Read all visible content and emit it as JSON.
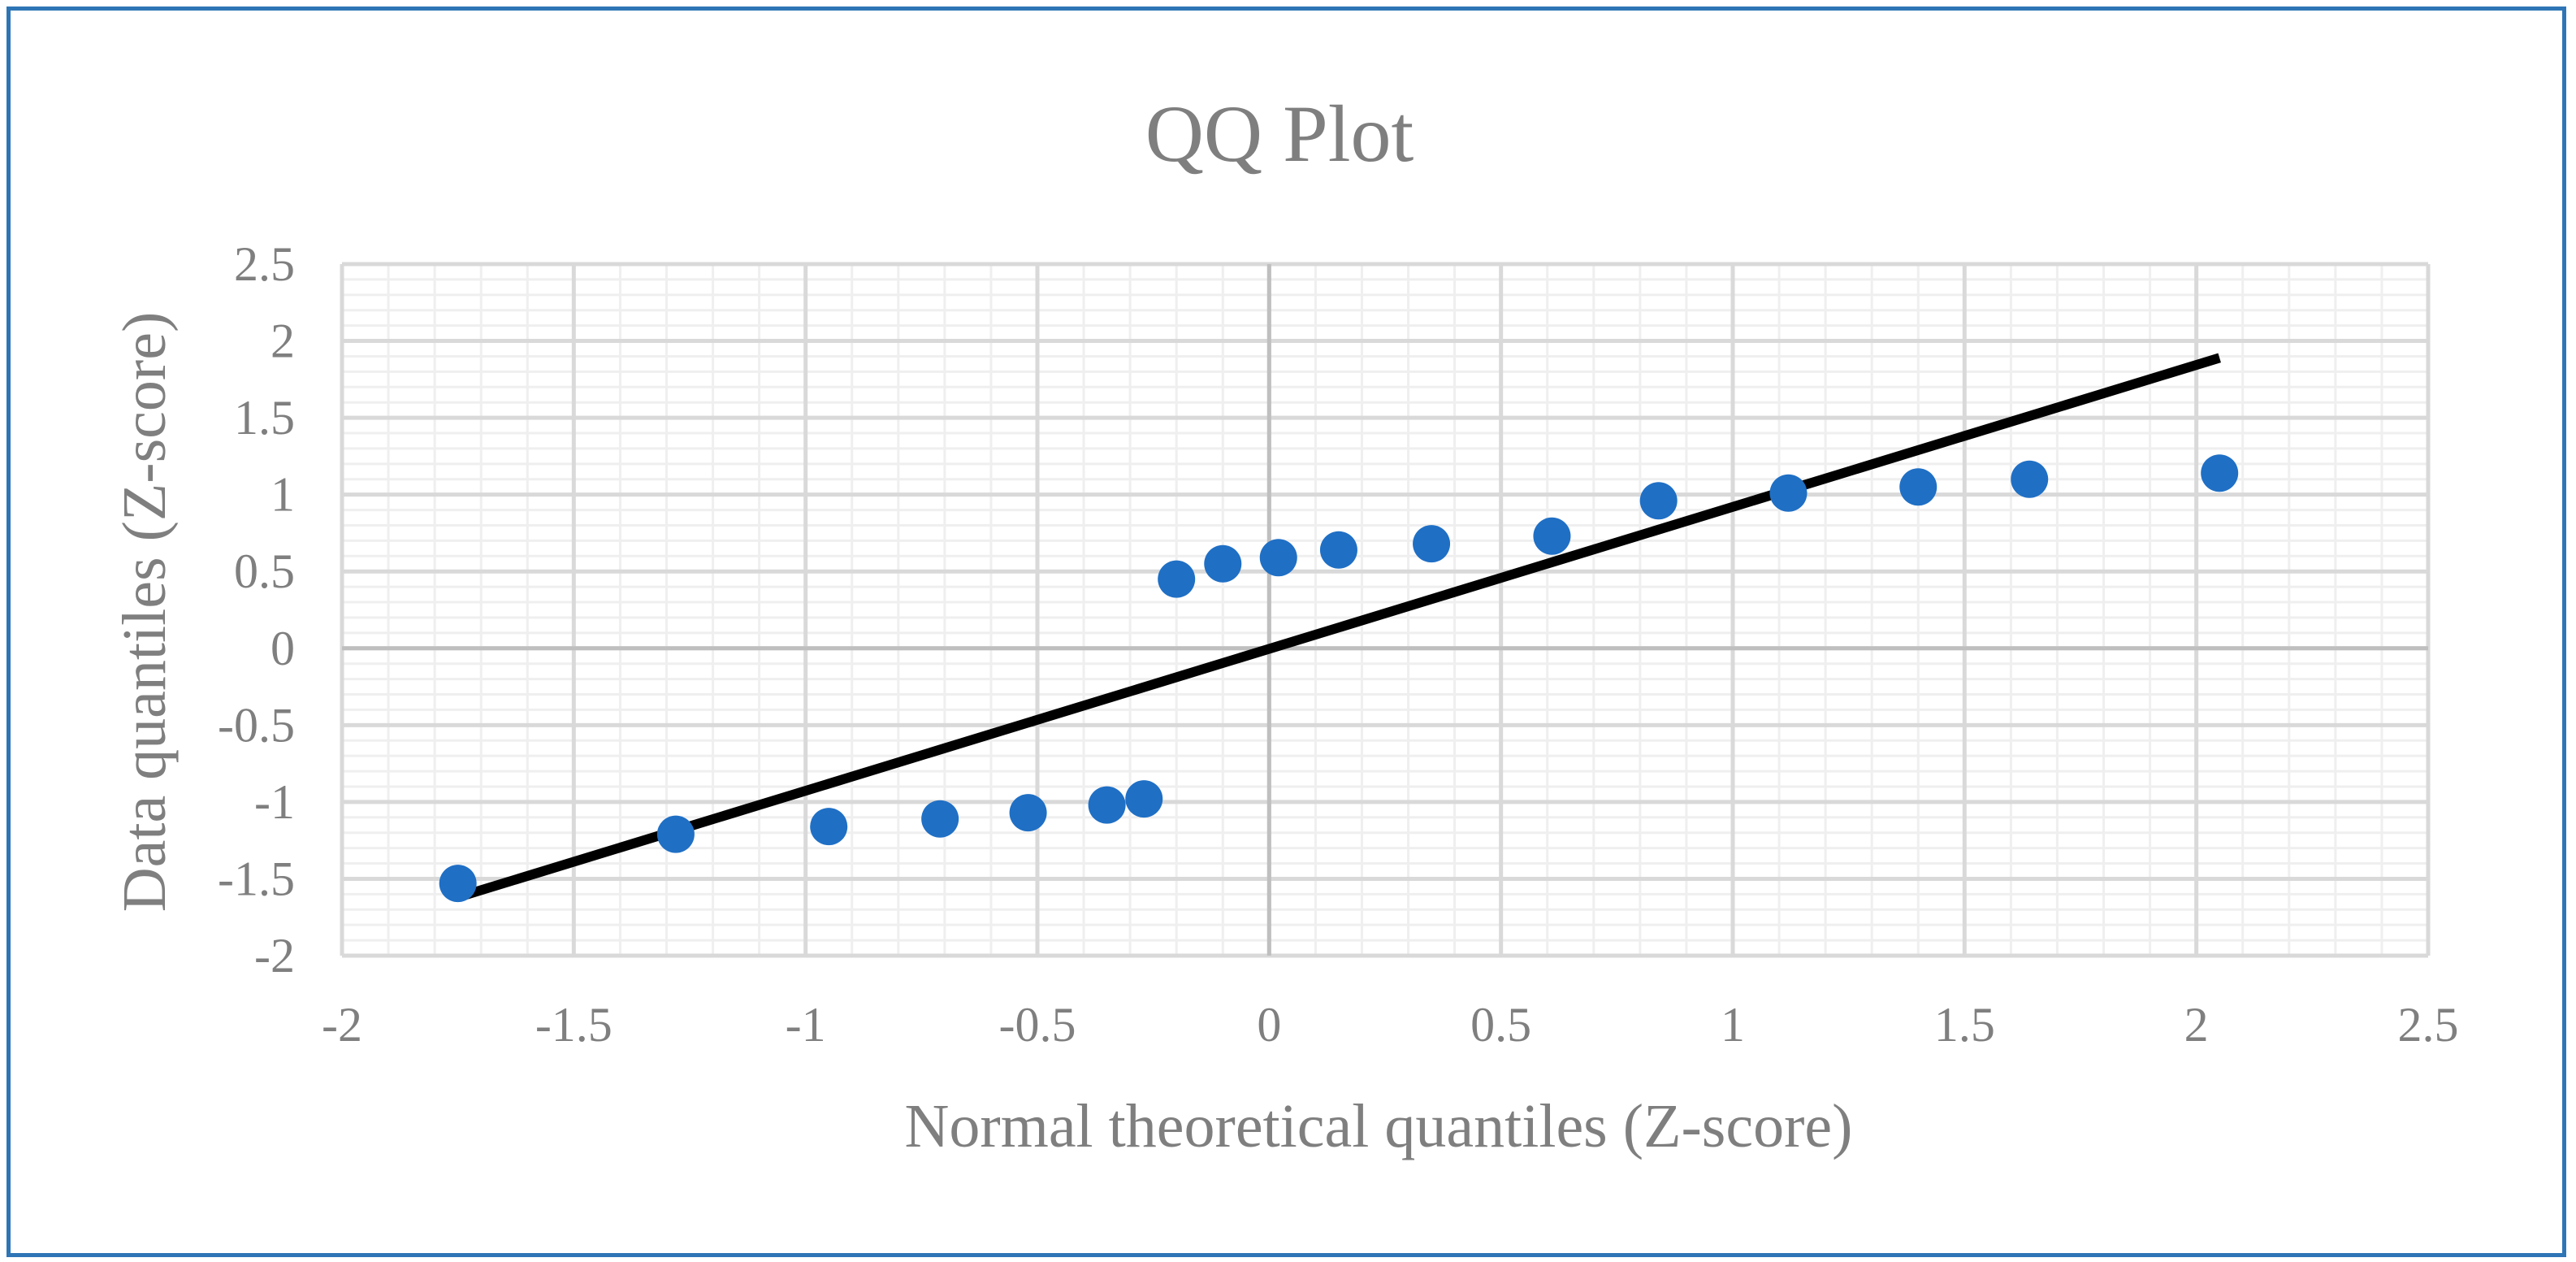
{
  "chart_data": {
    "type": "scatter",
    "title": "QQ Plot",
    "xlabel": "Normal theoretical quantiles (Z-score)",
    "ylabel": "Data quantiles (Z-score)",
    "xlim": [
      -2,
      2.5
    ],
    "ylim": [
      -2,
      2.5
    ],
    "x_major_step": 0.5,
    "y_major_step": 0.5,
    "x_minor_step": 0.1,
    "y_minor_step": 0.1,
    "x_ticks": [
      "-2",
      "-1.5",
      "-1",
      "-0.5",
      "0",
      "0.5",
      "1",
      "1.5",
      "2",
      "2.5"
    ],
    "y_ticks": [
      "2.5",
      "2",
      "1.5",
      "1",
      "0.5",
      "0",
      "-0.5",
      "-1",
      "-1.5",
      "-2"
    ],
    "grid": true,
    "colors": {
      "points": "#1F6FC5",
      "line": "#000000",
      "frame": "#2E75B6",
      "grid_major": "#d9d9d9",
      "grid_minor": "#efefef",
      "text": "#7f7f7f"
    },
    "series": [
      {
        "x": [
          -1.75,
          -1.28,
          -0.95,
          -0.71,
          -0.52,
          -0.35,
          -0.27,
          -0.2,
          -0.1,
          0.02,
          0.15,
          0.35,
          0.61,
          0.84,
          1.12,
          1.4,
          1.64,
          2.05
        ],
        "y": [
          -1.53,
          -1.21,
          -1.16,
          -1.11,
          -1.07,
          -1.02,
          -0.98,
          0.45,
          0.55,
          0.59,
          0.64,
          0.68,
          0.73,
          0.96,
          1.01,
          1.05,
          1.1,
          1.14
        ]
      }
    ],
    "trendline": {
      "x": [
        -1.75,
        2.05
      ],
      "y": [
        -1.62,
        1.89
      ]
    }
  }
}
